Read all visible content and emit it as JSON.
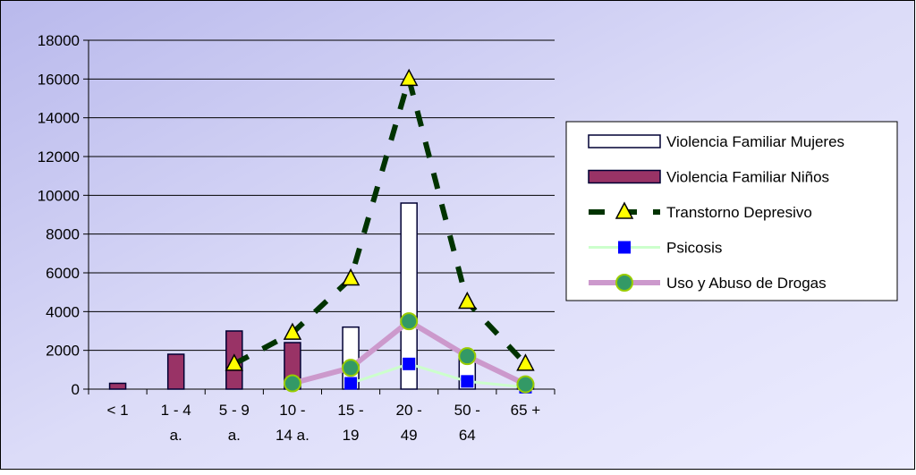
{
  "chart_data": {
    "type": "bar",
    "categories": [
      "< 1",
      "1 - 4 a.",
      "5 - 9 a.",
      "10 - 14 a.",
      "15 - 19",
      "20 - 49",
      "50 - 64",
      "65 +"
    ],
    "category_lines": [
      [
        "< 1"
      ],
      [
        "1 - 4",
        "a."
      ],
      [
        "5 - 9",
        "a."
      ],
      [
        "10 -",
        "14 a."
      ],
      [
        "15 -",
        "19"
      ],
      [
        "20 -",
        "49"
      ],
      [
        "50 -",
        "64"
      ],
      [
        "65 +"
      ]
    ],
    "ylim": [
      0,
      18000
    ],
    "yticks": [
      "0",
      "2000",
      "4000",
      "6000",
      "8000",
      "10000",
      "12000",
      "14000",
      "16000",
      "18000"
    ],
    "grid": true,
    "legend_position": "right",
    "series": [
      {
        "name": "Violencia Familiar Mujeres",
        "kind": "bar",
        "color": "#ffffff",
        "stroke": "#000033",
        "values": [
          null,
          null,
          null,
          null,
          3200,
          9600,
          1800,
          300
        ]
      },
      {
        "name": "Violencia Familiar Niños",
        "kind": "bar",
        "color": "#993366",
        "stroke": "#000033",
        "values": [
          300,
          1800,
          3000,
          2400,
          null,
          null,
          null,
          null
        ]
      },
      {
        "name": "Transtorno Depresivo",
        "kind": "line",
        "color": "#003300",
        "marker": "triangle",
        "marker_color": "#ffff00",
        "values": [
          null,
          null,
          1300,
          2900,
          5700,
          16000,
          4500,
          1300
        ]
      },
      {
        "name": "Psicosis",
        "kind": "line",
        "color": "#ccffcc",
        "marker": "square",
        "marker_color": "#0000ff",
        "values": [
          null,
          null,
          null,
          null,
          300,
          1300,
          400,
          100
        ]
      },
      {
        "name": "Uso y Abuso de Drogas",
        "kind": "line",
        "color": "#cc99cc",
        "marker": "circle",
        "marker_color": "#339966",
        "values": [
          null,
          null,
          null,
          300,
          1100,
          3500,
          1700,
          250
        ]
      }
    ]
  }
}
